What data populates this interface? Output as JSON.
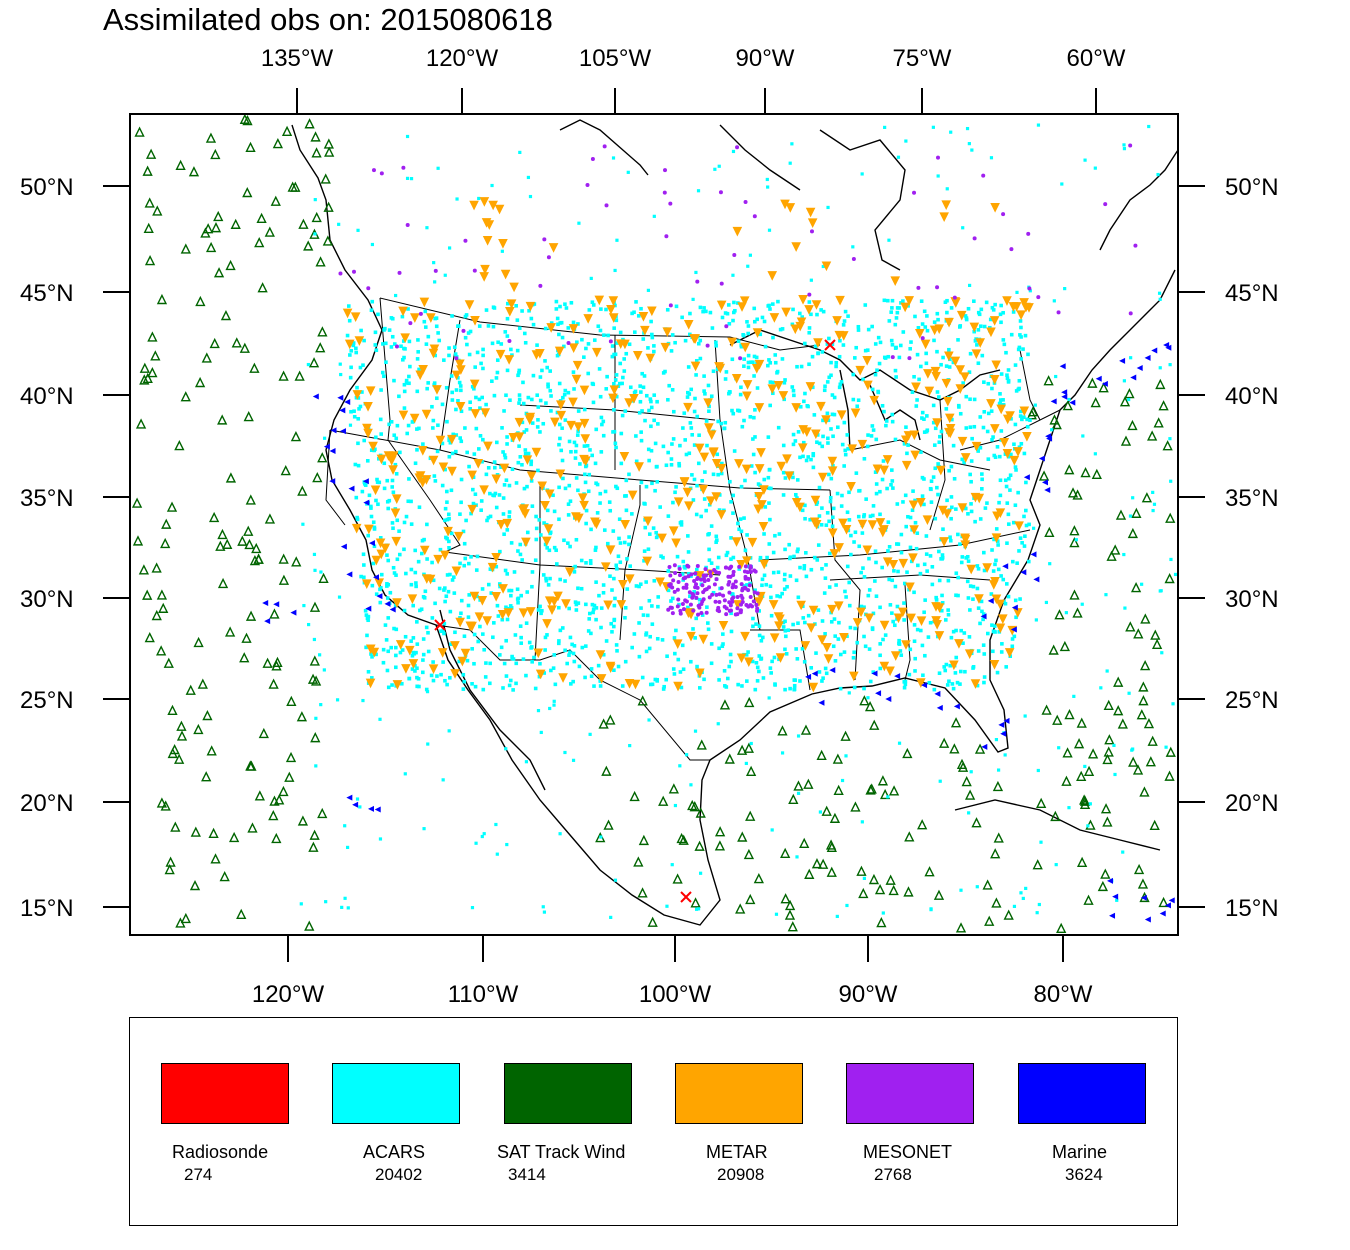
{
  "title": "Assimilated obs on: 2015080618",
  "top_axis_labels": [
    "135°W",
    "120°W",
    "105°W",
    "90°W",
    "75°W",
    "60°W"
  ],
  "bottom_axis_labels": [
    "120°W",
    "110°W",
    "100°W",
    "90°W",
    "80°W"
  ],
  "lat_labels": [
    "50°N",
    "45°N",
    "40°N",
    "35°N",
    "30°N",
    "25°N",
    "20°N",
    "15°N"
  ],
  "legend": [
    {
      "label": "Radiosonde",
      "count": "274",
      "color": "#ff0000"
    },
    {
      "label": "ACARS",
      "count": "20402",
      "color": "#00ffff"
    },
    {
      "label": "SAT Track Wind",
      "count": "3414",
      "color": "#006400"
    },
    {
      "label": "METAR",
      "count": "20908",
      "color": "#ffa500"
    },
    {
      "label": "MESONET",
      "count": "2768",
      "color": "#a020f0"
    },
    {
      "label": "Marine",
      "count": "3624",
      "color": "#0000ff"
    }
  ]
}
